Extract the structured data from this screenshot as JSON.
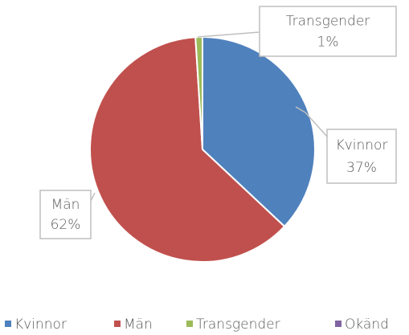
{
  "chart_data": {
    "type": "pie",
    "categories": [
      "Kvinnor",
      "Män",
      "Transgender",
      "Okänd"
    ],
    "values": [
      37,
      62,
      1,
      0
    ],
    "value_labels": [
      "37%",
      "62%",
      "1%",
      null
    ],
    "colors": [
      "#4f81bd",
      "#c0504d",
      "#9bbb59",
      "#8064a2"
    ],
    "legend": "bottom"
  }
}
